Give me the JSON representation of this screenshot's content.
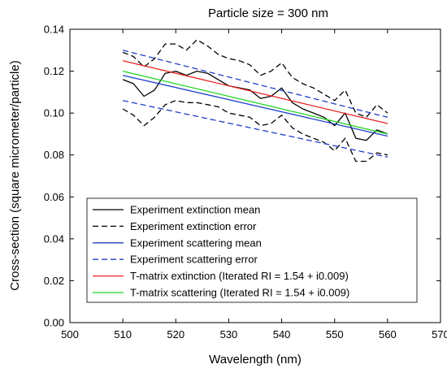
{
  "chart_data": {
    "type": "line",
    "title": "Particle size = 300 nm",
    "xlabel": "Wavelength (nm)",
    "ylabel": "Cross-section (square micrometer/particle)",
    "xlim": [
      500,
      570
    ],
    "ylim": [
      0.0,
      0.14
    ],
    "xticks": [
      "500",
      "510",
      "520",
      "530",
      "540",
      "550",
      "560",
      "570"
    ],
    "yticks": [
      "0.00",
      "0.02",
      "0.04",
      "0.06",
      "0.08",
      "0.10",
      "0.12",
      "0.14"
    ],
    "grid": false,
    "legend_position": "bottom-left",
    "series": [
      {
        "name": "Experiment extinction mean",
        "color": "#000000",
        "dash": "solid",
        "x": [
          510,
          512,
          514,
          516,
          518,
          520,
          522,
          524,
          526,
          528,
          530,
          532,
          534,
          536,
          538,
          540,
          542,
          544,
          546,
          548,
          550,
          552,
          554,
          556,
          558,
          560
        ],
        "y": [
          0.116,
          0.114,
          0.108,
          0.111,
          0.119,
          0.12,
          0.118,
          0.12,
          0.119,
          0.116,
          0.113,
          0.112,
          0.111,
          0.107,
          0.108,
          0.112,
          0.105,
          0.102,
          0.1,
          0.098,
          0.094,
          0.1,
          0.088,
          0.087,
          0.092,
          0.09
        ]
      },
      {
        "name": "Experiment extinction error",
        "color": "#000000",
        "dash": "dashed",
        "x": [
          510,
          512,
          514,
          516,
          518,
          520,
          522,
          524,
          526,
          528,
          530,
          532,
          534,
          536,
          538,
          540,
          542,
          544,
          546,
          548,
          550,
          552,
          554,
          556,
          558,
          560
        ],
        "y": [
          0.129,
          0.127,
          0.122,
          0.126,
          0.133,
          0.133,
          0.13,
          0.135,
          0.132,
          0.128,
          0.126,
          0.125,
          0.123,
          0.118,
          0.12,
          0.124,
          0.117,
          0.114,
          0.112,
          0.109,
          0.106,
          0.111,
          0.1,
          0.098,
          0.104,
          0.1
        ]
      },
      {
        "name": "",
        "color": "#000000",
        "dash": "dashed",
        "x": [
          510,
          512,
          514,
          516,
          518,
          520,
          522,
          524,
          526,
          528,
          530,
          532,
          534,
          536,
          538,
          540,
          542,
          544,
          546,
          548,
          550,
          552,
          554,
          556,
          558,
          560
        ],
        "y": [
          0.102,
          0.099,
          0.094,
          0.098,
          0.104,
          0.106,
          0.105,
          0.105,
          0.104,
          0.103,
          0.1,
          0.099,
          0.098,
          0.094,
          0.095,
          0.099,
          0.093,
          0.09,
          0.088,
          0.086,
          0.082,
          0.088,
          0.077,
          0.077,
          0.081,
          0.08
        ]
      },
      {
        "name": "Experiment scattering mean",
        "color": "#1f3fc8",
        "dash": "solid",
        "x": [
          510,
          560
        ],
        "y": [
          0.118,
          0.089
        ]
      },
      {
        "name": "Experiment scattering error",
        "color": "#1f3fc8",
        "dash": "dashed",
        "x": [
          510,
          560
        ],
        "y": [
          0.13,
          0.098
        ]
      },
      {
        "name": "",
        "color": "#1f3fc8",
        "dash": "dashed",
        "x": [
          510,
          560
        ],
        "y": [
          0.106,
          0.079
        ]
      },
      {
        "name": "T-matrix extinction (Iterated RI = 1.54 + i0.009)",
        "color": "#e8231e",
        "dash": "solid",
        "x": [
          510,
          560
        ],
        "y": [
          0.125,
          0.095
        ]
      },
      {
        "name": "T-matrix scattering (Iterated RI = 1.54 + i0.009)",
        "color": "#22d422",
        "dash": "solid",
        "x": [
          510,
          560
        ],
        "y": [
          0.12,
          0.09
        ]
      }
    ]
  }
}
